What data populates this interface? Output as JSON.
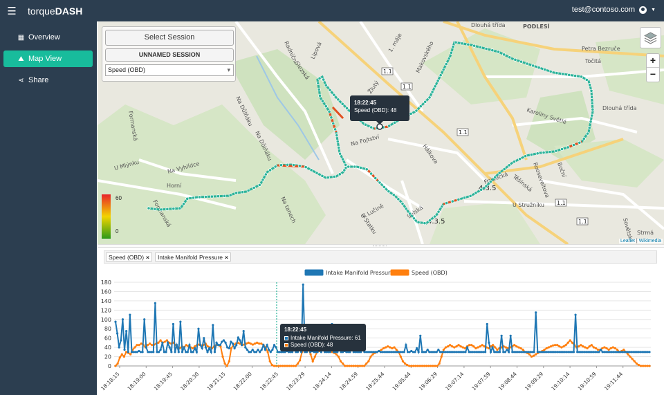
{
  "app": {
    "brand_prefix": "torque",
    "brand_suffix": "DASH",
    "user_email": "test@contoso.com"
  },
  "sidebar": {
    "items": [
      {
        "label": "Overview",
        "icon": "table-icon"
      },
      {
        "label": "Map View",
        "icon": "map-icon",
        "active": true
      },
      {
        "label": "Share",
        "icon": "share-icon"
      }
    ]
  },
  "map": {
    "select_session_label": "Select Session",
    "session_name": "UNNAMED SESSION",
    "metric_selected": "Speed (OBD)",
    "zoom_in": "+",
    "zoom_out": "−",
    "attribution_leaflet": "Leaflet",
    "attribution_sep": " | ",
    "attribution_wiki": "Wikimedia",
    "legend": {
      "max": "60",
      "min": "0"
    },
    "tooltip": {
      "time": "18:22:45",
      "line": "Speed (OBD): 48"
    },
    "labels": [
      {
        "text": "PODLESÍ"
      },
      {
        "text": "Dlouhá třída"
      },
      {
        "text": "Petra Bezruče"
      },
      {
        "text": "Točitá"
      },
      {
        "text": "Dlouhá třída"
      },
      {
        "text": "Karoliny Světlé"
      },
      {
        "text": "Rooseveltova"
      },
      {
        "text": "Boční"
      },
      {
        "text": "Frýdecká"
      },
      {
        "text": "Těšínská"
      },
      {
        "text": "U Stružníku"
      },
      {
        "text": "Strmá"
      },
      {
        "text": "Na Fojtství"
      },
      {
        "text": "Hálkova"
      },
      {
        "text": "K Lučině"
      },
      {
        "text": "U Statku"
      },
      {
        "text": "Na Vyhlídce"
      },
      {
        "text": "Horní"
      },
      {
        "text": "Formanská"
      },
      {
        "text": "U Mlýnku"
      },
      {
        "text": "Na Důlňáku"
      },
      {
        "text": "Na Důlňáku"
      },
      {
        "text": "Na tanech"
      },
      {
        "text": "Selská"
      },
      {
        "text": "Lipová"
      },
      {
        "text": "Žlutý"
      },
      {
        "text": "Makovského"
      },
      {
        "text": "1. máje"
      },
      {
        "text": "Radniční"
      },
      {
        "text": "Formanská"
      },
      {
        "text": "Slezská"
      },
      {
        "text": "Sovětská"
      }
    ],
    "road_shields": [
      "1.1",
      "1.1",
      "1.1",
      "1.1",
      "1.1",
      "4.3.5",
      "4.3.5"
    ]
  },
  "chart_tags": [
    {
      "label": "Speed (OBD)"
    },
    {
      "label": "Intake Manifold Pressure"
    }
  ],
  "chart_data": {
    "type": "line",
    "legend_position": "top-center",
    "y_ticks": [
      0,
      20,
      40,
      60,
      80,
      100,
      120,
      140,
      160,
      180
    ],
    "ylim": [
      0,
      180
    ],
    "x_ticks": [
      "18:18:15",
      "18:19:00",
      "18:19:45",
      "18:20:30",
      "18:21:15",
      "18:22:00",
      "18:22:45",
      "18:23:29",
      "18:24:14",
      "18:24:59",
      "18:25:44",
      "19:05:44",
      "19:06:29",
      "19:07:14",
      "19:07:59",
      "19:08:44",
      "19:09:29",
      "19:10:14",
      "19:10:59",
      "19:11:44"
    ],
    "series": [
      {
        "name": "Intake Manifold Pressure",
        "color": "#1f77b4",
        "values": [
          95,
          70,
          40,
          55,
          100,
          35,
          75,
          30,
          110,
          30,
          30,
          30,
          30,
          32,
          30,
          30,
          100,
          40,
          30,
          30,
          30,
          30,
          135,
          30,
          30,
          35,
          50,
          30,
          30,
          50,
          40,
          30,
          90,
          30,
          45,
          30,
          95,
          30,
          40,
          30,
          30,
          45,
          30,
          30,
          38,
          30,
          80,
          45,
          38,
          60,
          40,
          30,
          38,
          30,
          88,
          30,
          50,
          45,
          45,
          52,
          55,
          50,
          40,
          38,
          52,
          48,
          38,
          45,
          61,
          55,
          45,
          75,
          40,
          35,
          30,
          30,
          35,
          30,
          30,
          35,
          30,
          35,
          45,
          35,
          45,
          35,
          30,
          35,
          45,
          40,
          30,
          30,
          30,
          30,
          30,
          32,
          30,
          30,
          30,
          45,
          30,
          30,
          35,
          30,
          175,
          30,
          30,
          60,
          30,
          32,
          30,
          30,
          30,
          40,
          30,
          35,
          30,
          30,
          30,
          30,
          90,
          30,
          30,
          30,
          35,
          30,
          30,
          32,
          30,
          30,
          30,
          80,
          30,
          30,
          30,
          30,
          30,
          35,
          30,
          30,
          30,
          30,
          30,
          30,
          30,
          30,
          32,
          30,
          30,
          30,
          30,
          30,
          30,
          30,
          30,
          30,
          30,
          30,
          30,
          30,
          30,
          45,
          30,
          30,
          32,
          30,
          30,
          38,
          30,
          65,
          30,
          30,
          30,
          35,
          30,
          30,
          30,
          30,
          30,
          35,
          30,
          30,
          30,
          30,
          30,
          30,
          30,
          30,
          30,
          30,
          30,
          30,
          30,
          30,
          30,
          40,
          30,
          30,
          30,
          30,
          30,
          30,
          30,
          30,
          30,
          30,
          90,
          50,
          30,
          40,
          30,
          30,
          30,
          30,
          65,
          30,
          30,
          35,
          30,
          65,
          30,
          30,
          30,
          30,
          30,
          30,
          30,
          30,
          30,
          30,
          30,
          30,
          30,
          115,
          30,
          30,
          30,
          30,
          30,
          30,
          30,
          30,
          30,
          30,
          30,
          30,
          30,
          30,
          30,
          30,
          30,
          30,
          30,
          30,
          30,
          110,
          30,
          30,
          30,
          30,
          30,
          30,
          30,
          30,
          30,
          30,
          30,
          30,
          30,
          35,
          30,
          30,
          30,
          30,
          30,
          30,
          30,
          30,
          30,
          30,
          30,
          30,
          30,
          30,
          30,
          30,
          30,
          30,
          30,
          30,
          30,
          30,
          30,
          30,
          30,
          30,
          30
        ]
      },
      {
        "name": "Speed (OBD)",
        "color": "#ff7f0e",
        "values": [
          0,
          5,
          18,
          25,
          20,
          30,
          28,
          25,
          35,
          40,
          45,
          45,
          48,
          45,
          40,
          45,
          48,
          45,
          46,
          48,
          50,
          55,
          50,
          52,
          55,
          50,
          48,
          50,
          45,
          40,
          38,
          42,
          40,
          45,
          42,
          40,
          38,
          42,
          45,
          46,
          44,
          45,
          48,
          42,
          40,
          38,
          42,
          45,
          45,
          42,
          20,
          5,
          0,
          10,
          38,
          45,
          48,
          50,
          48,
          45,
          46,
          48,
          50,
          48,
          46,
          48,
          50,
          48,
          48,
          45,
          40,
          30,
          10,
          2,
          0,
          0,
          0,
          0,
          0,
          0,
          0,
          0,
          0,
          0,
          0,
          5,
          12,
          30,
          40,
          42,
          35,
          25,
          10,
          20,
          30,
          32,
          35,
          38,
          35,
          38,
          35,
          30,
          28,
          25,
          20,
          10,
          5,
          0,
          0,
          0,
          0,
          0,
          0,
          0,
          0,
          0,
          0,
          5,
          10,
          20,
          25,
          28,
          30,
          32,
          35,
          38,
          40,
          42,
          40,
          38,
          40,
          35,
          30,
          20,
          10,
          5,
          2,
          0,
          0,
          0,
          0,
          0,
          0,
          0,
          0,
          0,
          0,
          0,
          0,
          0,
          0,
          5,
          20,
          35,
          40,
          42,
          45,
          42,
          40,
          42,
          45,
          42,
          40,
          38,
          42,
          45,
          45,
          42,
          38,
          40,
          42,
          45,
          42,
          40,
          38,
          42,
          45,
          40,
          35,
          38,
          40,
          42,
          40,
          38,
          40,
          42,
          45,
          42,
          40,
          38,
          35,
          30,
          28,
          25,
          20,
          22,
          25,
          28,
          30,
          32,
          35,
          38,
          40,
          42,
          44,
          45,
          45,
          42,
          40,
          42,
          45,
          50,
          55,
          50,
          45,
          40,
          42,
          45,
          42,
          40,
          38,
          42,
          45,
          40,
          38,
          35,
          35,
          38,
          40,
          38,
          35,
          38,
          40,
          38,
          35,
          30,
          32,
          35,
          30,
          25,
          20,
          15,
          10,
          5,
          2,
          0,
          0,
          0,
          0,
          0
        ]
      }
    ],
    "tooltip": {
      "time": "18:22:45",
      "pressure_line": "Intake Manifold Pressure: 61",
      "speed_line": "Speed (OBD): 48"
    }
  }
}
